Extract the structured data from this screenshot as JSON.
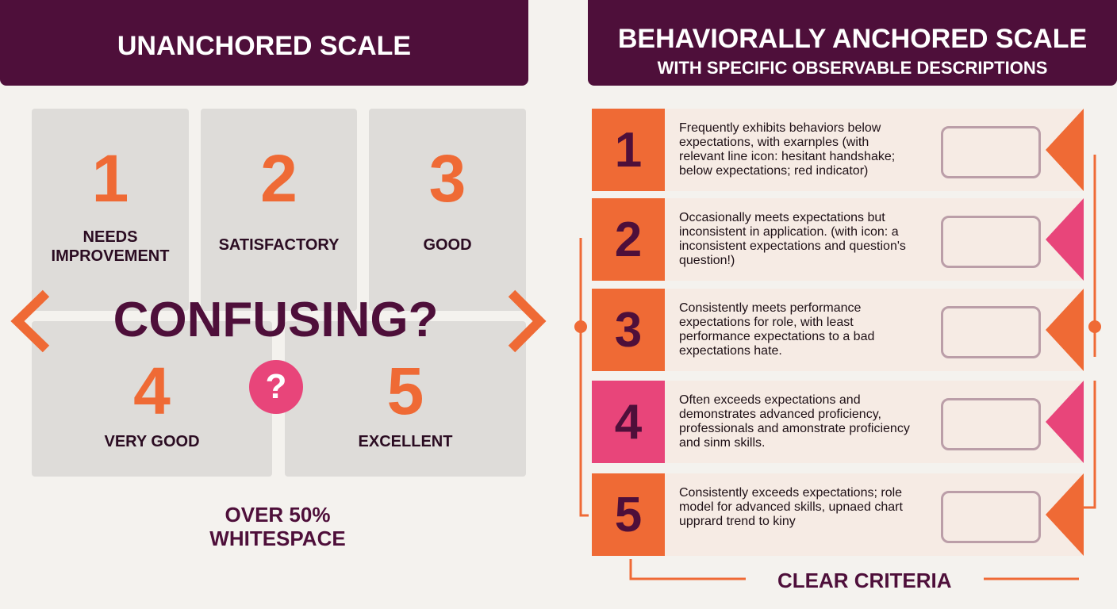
{
  "left": {
    "title": "UNANCHORED SCALE",
    "cells": [
      {
        "number": 1,
        "label": "NEEDS IMPROVEMENT"
      },
      {
        "number": 2,
        "label": "SATISFACTORY"
      },
      {
        "number": 3,
        "label": "GOOD"
      },
      {
        "number": 4,
        "label": "VERY GOOD"
      },
      {
        "number": 5,
        "label": "EXCELLENT"
      }
    ],
    "overlay": "CONFUSING?",
    "question": "?",
    "footer": "OVER 50% WHITESPACE"
  },
  "right": {
    "title": "BEHAVIORALLY ANCHORED SCALE",
    "subtitle": "WITH SPECIFIC OBSERVABLE DESCRIPTIONS",
    "rows": [
      {
        "number": 1,
        "description": "Frequently exhibits behaviors below expectations, with exarnples (with relevant line icon: hesitant handshake; below expectations; red indicator)"
      },
      {
        "number": 2,
        "description": "Occasionally meets expectations but inconsistent in application. (with icon: a inconsistent expectations and question's question!)"
      },
      {
        "number": 3,
        "description": "Consistently meets performance expectations for role, with least performance expectations to a bad expectations hate."
      },
      {
        "number": 4,
        "description": "Often exceeds expectations and demonstrates advanced proficiency, professionals and amonstrate proficiency and sinm skills."
      },
      {
        "number": 5,
        "description": "Consistently exceeds expectations; role model for advanced skills, upnaed chart upprard trend to kiny"
      }
    ],
    "footer": "CLEAR CRITERIA"
  }
}
